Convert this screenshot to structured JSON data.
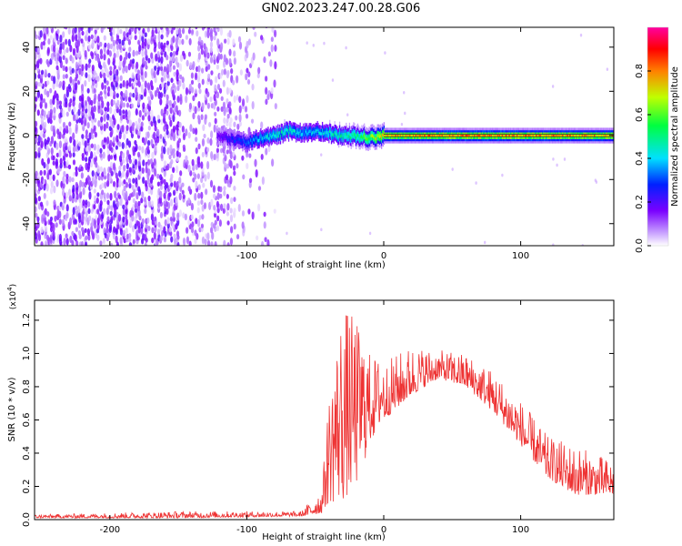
{
  "title": "GN02.2023.247.00.28.G06",
  "chart_data": [
    {
      "type": "heatmap",
      "xlabel": "Height of straight line (km)",
      "ylabel": "Frequency (Hz)",
      "xlim": [
        -255,
        168
      ],
      "ylim": [
        -50,
        49
      ],
      "xticks": [
        -200,
        -100,
        0,
        100
      ],
      "yticks": [
        -40,
        -20,
        0,
        20,
        40
      ],
      "ridge": {
        "description_values_x": [
          -120,
          -110,
          -100,
          -90,
          -80,
          -70,
          -60,
          -50,
          -40,
          -30,
          -20,
          -10,
          0,
          50,
          100,
          168
        ],
        "freq_hz": [
          0,
          -2,
          -3,
          -1,
          0,
          2,
          1,
          2,
          1,
          0,
          0,
          -1,
          0,
          0,
          0,
          0
        ],
        "amplitude": [
          0.2,
          0.3,
          0.35,
          0.45,
          0.5,
          0.5,
          0.45,
          0.45,
          0.5,
          0.55,
          0.6,
          0.7,
          0.85,
          0.9,
          0.9,
          0.85
        ]
      },
      "colorbar": {
        "label": "Normalized spectral amplitude",
        "range": [
          0,
          1
        ],
        "ticks": [
          0.0,
          0.2,
          0.4,
          0.6,
          0.8
        ]
      }
    },
    {
      "type": "line",
      "xlabel": "Height of straight line (km)",
      "ylabel": "SNR (10 * v/v)",
      "yscale_label": "(x10",
      "yscale_exp": "4",
      "yscale_close": ")",
      "xlim": [
        -255,
        168
      ],
      "ylim": [
        0,
        1.32
      ],
      "xticks": [
        -200,
        -100,
        0,
        100
      ],
      "yticks": [
        0.0,
        0.2,
        0.4,
        0.6,
        0.8,
        1.0,
        1.2
      ],
      "line_color": "#ee3333",
      "envelope": {
        "x": [
          -255,
          -150,
          -60,
          -45,
          -40,
          -30,
          -20,
          -10,
          0,
          20,
          40,
          60,
          80,
          100,
          120,
          140,
          168
        ],
        "low": [
          0.01,
          0.01,
          0.02,
          0.04,
          0.1,
          0.1,
          0.2,
          0.45,
          0.6,
          0.75,
          0.85,
          0.8,
          0.65,
          0.45,
          0.25,
          0.15,
          0.15
        ],
        "high": [
          0.03,
          0.05,
          0.05,
          0.2,
          0.75,
          1.3,
          1.2,
          1.0,
          0.95,
          1.05,
          1.02,
          1.0,
          0.9,
          0.72,
          0.5,
          0.45,
          0.35
        ]
      }
    }
  ]
}
